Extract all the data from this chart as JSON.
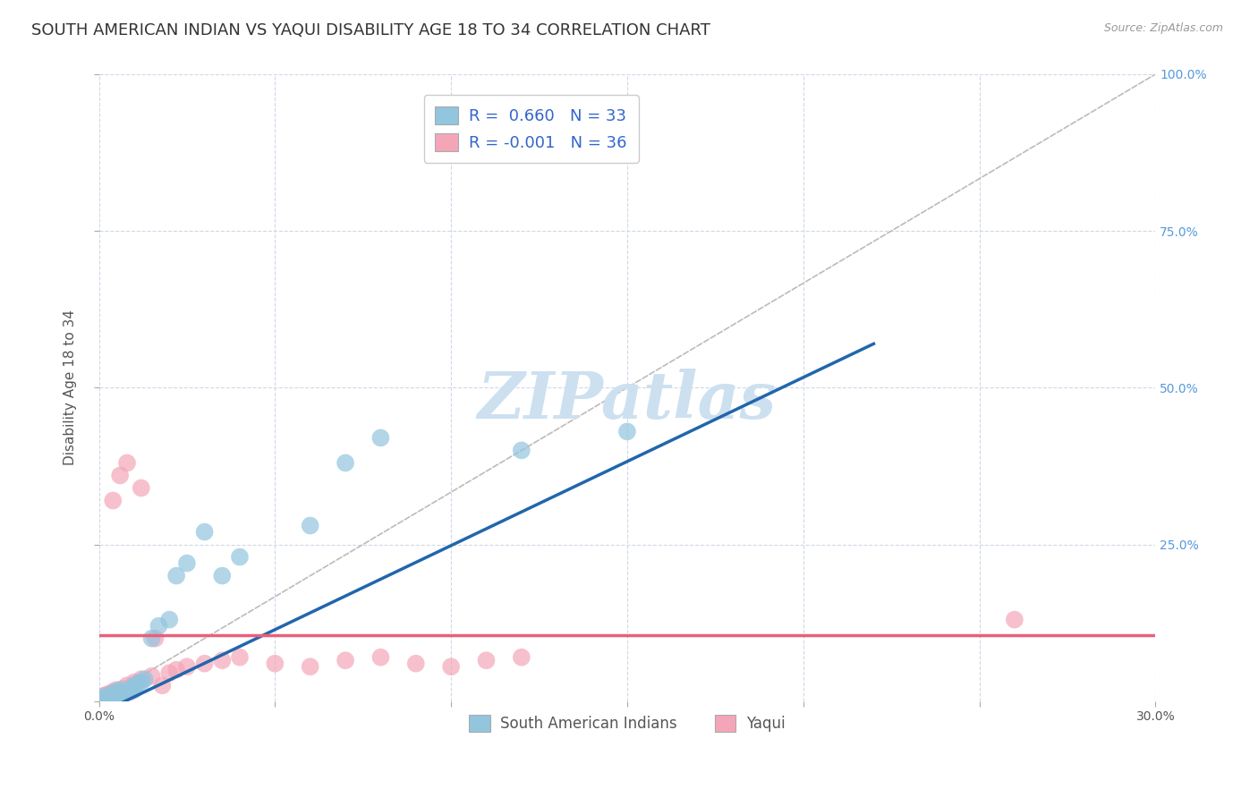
{
  "title": "SOUTH AMERICAN INDIAN VS YAQUI DISABILITY AGE 18 TO 34 CORRELATION CHART",
  "source": "Source: ZipAtlas.com",
  "ylabel": "Disability Age 18 to 34",
  "xlim": [
    0,
    0.3
  ],
  "ylim": [
    0,
    1.0
  ],
  "xticks": [
    0.0,
    0.05,
    0.1,
    0.15,
    0.2,
    0.25,
    0.3
  ],
  "yticks": [
    0.0,
    0.25,
    0.5,
    0.75,
    1.0
  ],
  "blue_R": 0.66,
  "blue_N": 33,
  "pink_R": -0.001,
  "pink_N": 36,
  "blue_color": "#92c5de",
  "pink_color": "#f4a6b8",
  "blue_line_color": "#2166ac",
  "pink_line_color": "#e8607a",
  "ref_line_color": "#bbbbbb",
  "legend_label_blue": "South American Indians",
  "legend_label_pink": "Yaqui",
  "blue_x": [
    0.001,
    0.001,
    0.002,
    0.002,
    0.003,
    0.003,
    0.004,
    0.004,
    0.005,
    0.005,
    0.006,
    0.006,
    0.007,
    0.008,
    0.009,
    0.01,
    0.01,
    0.011,
    0.012,
    0.013,
    0.015,
    0.017,
    0.02,
    0.022,
    0.025,
    0.03,
    0.035,
    0.04,
    0.06,
    0.07,
    0.08,
    0.12,
    0.15
  ],
  "blue_y": [
    0.0,
    0.005,
    0.002,
    0.008,
    0.003,
    0.01,
    0.005,
    0.012,
    0.0,
    0.015,
    0.008,
    0.018,
    0.012,
    0.015,
    0.02,
    0.025,
    0.018,
    0.028,
    0.03,
    0.035,
    0.1,
    0.12,
    0.13,
    0.2,
    0.22,
    0.27,
    0.2,
    0.23,
    0.28,
    0.38,
    0.42,
    0.4,
    0.43
  ],
  "pink_x": [
    0.001,
    0.001,
    0.002,
    0.002,
    0.003,
    0.003,
    0.004,
    0.005,
    0.006,
    0.007,
    0.008,
    0.009,
    0.01,
    0.012,
    0.015,
    0.018,
    0.02,
    0.022,
    0.025,
    0.03,
    0.035,
    0.04,
    0.05,
    0.06,
    0.07,
    0.08,
    0.09,
    0.1,
    0.11,
    0.12,
    0.004,
    0.006,
    0.008,
    0.012,
    0.26,
    0.016
  ],
  "pink_y": [
    0.0,
    0.008,
    0.003,
    0.01,
    0.005,
    0.012,
    0.015,
    0.018,
    0.01,
    0.02,
    0.025,
    0.015,
    0.03,
    0.035,
    0.04,
    0.025,
    0.045,
    0.05,
    0.055,
    0.06,
    0.065,
    0.07,
    0.06,
    0.055,
    0.065,
    0.07,
    0.06,
    0.055,
    0.065,
    0.07,
    0.32,
    0.36,
    0.38,
    0.34,
    0.13,
    0.1
  ],
  "blue_trend_x": [
    0.0,
    0.22
  ],
  "blue_trend_y": [
    -0.02,
    0.57
  ],
  "pink_trend_y": 0.105,
  "background_color": "#ffffff",
  "grid_color": "#d0d8e8",
  "title_fontsize": 13,
  "axis_label_fontsize": 11,
  "tick_fontsize": 10,
  "watermark_text": "ZIPatlas",
  "watermark_color": "#cde0f0",
  "watermark_fontsize": 52
}
